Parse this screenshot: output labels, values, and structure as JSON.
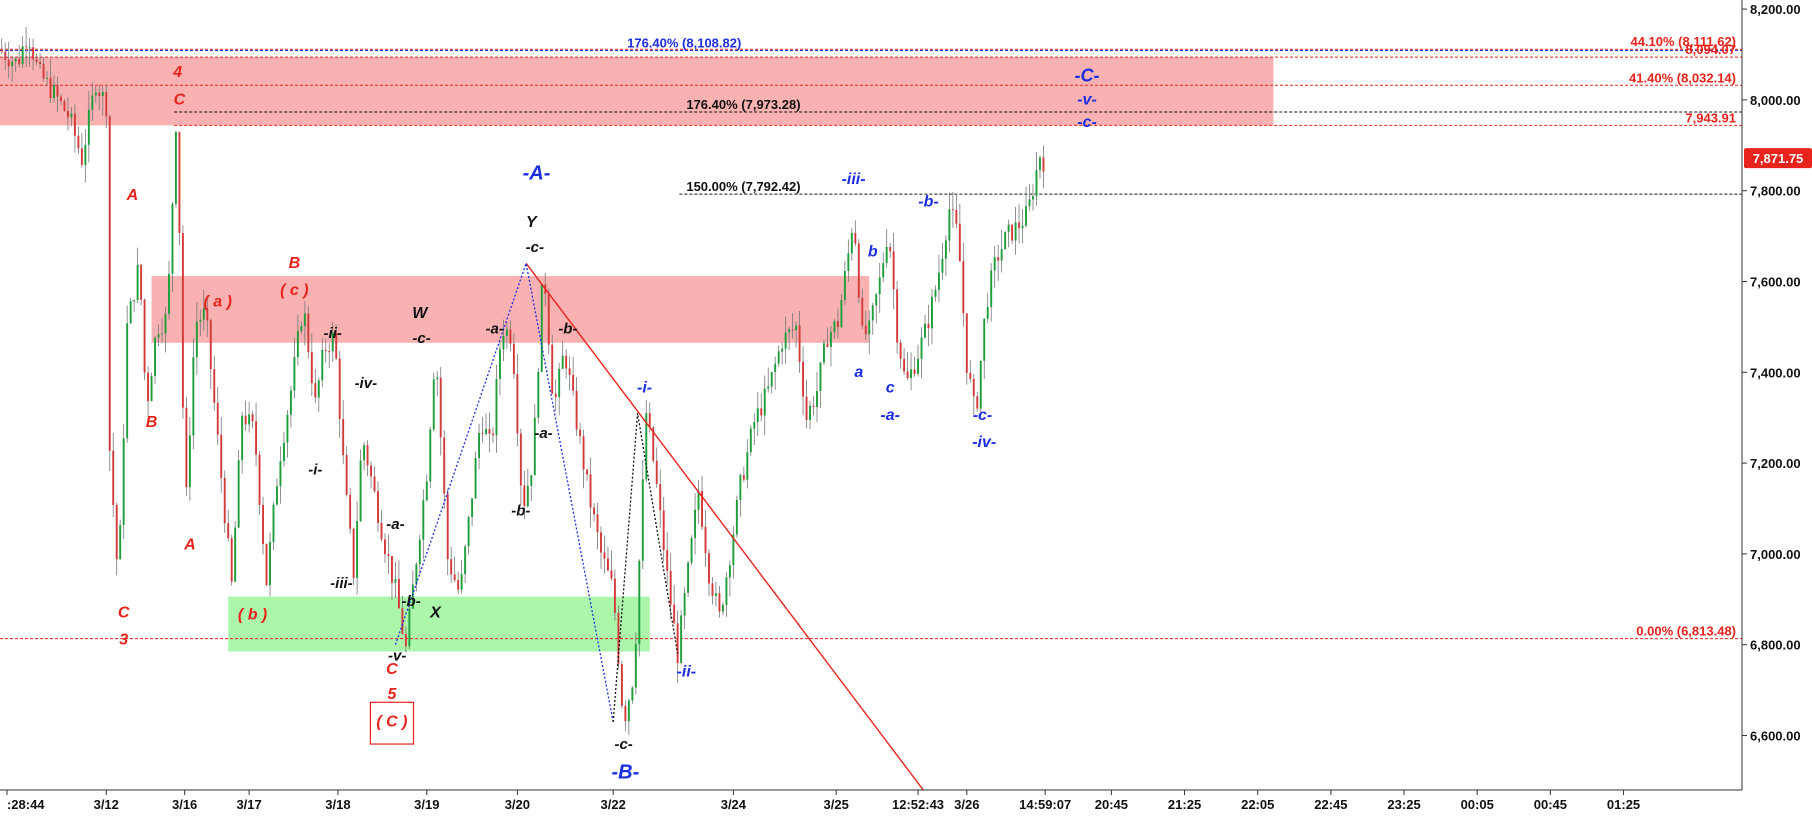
{
  "chart_data": {
    "type": "candlestick",
    "title": "",
    "xlabel": "",
    "ylabel": "",
    "ylim": [
      6480,
      8220
    ],
    "grid": false,
    "colors": {
      "up": "#1e9e3a",
      "down": "#d43a3a",
      "red": "#e8231c",
      "blue": "#1c2ee0",
      "black": "#111111",
      "zone_red": "#f8a3a3",
      "zone_green": "#9ef59e",
      "price_box": "#e8231c"
    },
    "y_ticks": [
      {
        "value": 8200,
        "label": "8,200.00"
      },
      {
        "value": 8000,
        "label": "8,000.00"
      },
      {
        "value": 7800,
        "label": "7,800.00"
      },
      {
        "value": 7600,
        "label": "7,600.00"
      },
      {
        "value": 7400,
        "label": "7,400.00"
      },
      {
        "value": 7200,
        "label": "7,200.00"
      },
      {
        "value": 7000,
        "label": "7,000.00"
      },
      {
        "value": 6800,
        "label": "6,800.00"
      },
      {
        "value": 6600,
        "label": "6,600.00"
      }
    ],
    "x_ticks": [
      ":28:44",
      "3/12",
      "3/16",
      "3/17",
      "3/18",
      "3/19",
      "3/20",
      "3/22",
      "3/24",
      "3/25",
      "12:52:43",
      "3/26",
      "14:59:07",
      "20:45",
      "21:25",
      "22:05",
      "22:45",
      "23:25",
      "00:05",
      "00:45",
      "01:25"
    ],
    "current_price": {
      "value": 7871.75,
      "label": "7,871.75"
    },
    "price_lines": [
      {
        "value": 8108.82,
        "label": "176.40% (8,108.82)",
        "color": "#1c2ee0",
        "start": 0.0,
        "label_pos": 0.36,
        "align": "left"
      },
      {
        "value": 8111.62,
        "label": "44.10% (8,111.62)",
        "color": "#e8231c",
        "start": 0.0,
        "label_pos": 1.0,
        "align": "right"
      },
      {
        "value": 8094.07,
        "label": "8,094.07",
        "color": "#e8231c",
        "start": 0.0,
        "label_pos": 1.0,
        "align": "right"
      },
      {
        "value": 8032.14,
        "label": "41.40% (8,032.14)",
        "color": "#e8231c",
        "start": 0.0,
        "label_pos": 1.0,
        "align": "right"
      },
      {
        "value": 7973.28,
        "label": "176.40% (7,973.28)",
        "color": "#111111",
        "start": 0.1,
        "label_pos": 0.394,
        "align": "left"
      },
      {
        "value": 7943.91,
        "label": "7,943.91",
        "color": "#e8231c",
        "start": 0.1,
        "label_pos": 1.0,
        "align": "right"
      },
      {
        "value": 7792.42,
        "label": "150.00% (7,792.42)",
        "color": "#111111",
        "start": 0.39,
        "label_pos": 0.394,
        "align": "left"
      },
      {
        "value": 6813.48,
        "label": "0.00% (6,813.48)",
        "color": "#e8231c",
        "start": 0.0,
        "label_pos": 1.0,
        "align": "right"
      }
    ],
    "zones": [
      {
        "kind": "red",
        "x0": 0.0,
        "x1": 0.731,
        "y0": 7943.91,
        "y1": 8094.07
      },
      {
        "kind": "red",
        "x0": 0.087,
        "x1": 0.499,
        "y0": 7465,
        "y1": 7612
      },
      {
        "kind": "green",
        "x0": 0.131,
        "x1": 0.373,
        "y0": 6785,
        "y1": 6906
      }
    ],
    "price_path": [
      [
        0.0,
        8110
      ],
      [
        0.01,
        8080
      ],
      [
        0.016,
        8150
      ],
      [
        0.022,
        8060
      ],
      [
        0.03,
        8020
      ],
      [
        0.04,
        7960
      ],
      [
        0.047,
        7870
      ],
      [
        0.055,
        8040
      ],
      [
        0.062,
        7980
      ],
      [
        0.063,
        7230
      ],
      [
        0.068,
        6930
      ],
      [
        0.073,
        7500
      ],
      [
        0.08,
        7640
      ],
      [
        0.084,
        7320
      ],
      [
        0.09,
        7500
      ],
      [
        0.096,
        7520
      ],
      [
        0.101,
        7950
      ],
      [
        0.104,
        7600
      ],
      [
        0.106,
        7050
      ],
      [
        0.112,
        7510
      ],
      [
        0.118,
        7530
      ],
      [
        0.125,
        7250
      ],
      [
        0.133,
        6930
      ],
      [
        0.139,
        7310
      ],
      [
        0.146,
        7270
      ],
      [
        0.153,
        6940
      ],
      [
        0.16,
        7200
      ],
      [
        0.167,
        7360
      ],
      [
        0.174,
        7550
      ],
      [
        0.181,
        7330
      ],
      [
        0.186,
        7450
      ],
      [
        0.192,
        7480
      ],
      [
        0.198,
        7150
      ],
      [
        0.203,
        6960
      ],
      [
        0.208,
        7260
      ],
      [
        0.215,
        7130
      ],
      [
        0.221,
        7020
      ],
      [
        0.227,
        6920
      ],
      [
        0.233,
        6790
      ],
      [
        0.239,
        6990
      ],
      [
        0.245,
        7180
      ],
      [
        0.25,
        7460
      ],
      [
        0.257,
        6990
      ],
      [
        0.264,
        6910
      ],
      [
        0.27,
        7100
      ],
      [
        0.276,
        7300
      ],
      [
        0.282,
        7230
      ],
      [
        0.288,
        7500
      ],
      [
        0.294,
        7480
      ],
      [
        0.3,
        7100
      ],
      [
        0.306,
        7210
      ],
      [
        0.312,
        7640
      ],
      [
        0.318,
        7320
      ],
      [
        0.324,
        7450
      ],
      [
        0.331,
        7290
      ],
      [
        0.338,
        7130
      ],
      [
        0.345,
        7000
      ],
      [
        0.352,
        6920
      ],
      [
        0.358,
        6630
      ],
      [
        0.364,
        6740
      ],
      [
        0.371,
        7310
      ],
      [
        0.376,
        7180
      ],
      [
        0.383,
        6950
      ],
      [
        0.389,
        6780
      ],
      [
        0.395,
        6960
      ],
      [
        0.401,
        7140
      ],
      [
        0.407,
        6960
      ],
      [
        0.413,
        6860
      ],
      [
        0.419,
        7000
      ],
      [
        0.425,
        7150
      ],
      [
        0.433,
        7290
      ],
      [
        0.441,
        7360
      ],
      [
        0.449,
        7470
      ],
      [
        0.457,
        7500
      ],
      [
        0.463,
        7300
      ],
      [
        0.469,
        7360
      ],
      [
        0.475,
        7480
      ],
      [
        0.481,
        7510
      ],
      [
        0.487,
        7660
      ],
      [
        0.49,
        7750
      ],
      [
        0.495,
        7480
      ],
      [
        0.499,
        7490
      ],
      [
        0.505,
        7600
      ],
      [
        0.51,
        7720
      ],
      [
        0.515,
        7490
      ],
      [
        0.52,
        7370
      ],
      [
        0.526,
        7430
      ],
      [
        0.532,
        7500
      ],
      [
        0.538,
        7600
      ],
      [
        0.545,
        7760
      ],
      [
        0.55,
        7700
      ],
      [
        0.555,
        7420
      ],
      [
        0.56,
        7300
      ],
      [
        0.566,
        7550
      ],
      [
        0.572,
        7650
      ],
      [
        0.578,
        7700
      ],
      [
        0.584,
        7720
      ],
      [
        0.59,
        7750
      ],
      [
        0.597,
        7880
      ],
      [
        0.6,
        7860
      ]
    ],
    "price_range": [
      0.0,
      0.6
    ],
    "trendline": {
      "x0": 0.302,
      "y0": 7640,
      "x1": 0.53,
      "y1": 6480,
      "color": "#e8231c"
    },
    "dotted_paths": [
      {
        "color": "#1c2ee0",
        "points": [
          [
            0.227,
            6800
          ],
          [
            0.302,
            7640
          ],
          [
            0.352,
            6630
          ]
        ]
      },
      {
        "color": "#111111",
        "points": [
          [
            0.352,
            6630
          ],
          [
            0.366,
            7310
          ],
          [
            0.389,
            6780
          ]
        ]
      }
    ],
    "annotations": [
      {
        "text": "4",
        "x": 0.102,
        "y": 8050,
        "color": "#e8231c",
        "size": 16
      },
      {
        "text": "C",
        "x": 0.103,
        "y": 7990,
        "color": "#e8231c",
        "size": 16
      },
      {
        "text": "A",
        "x": 0.076,
        "y": 7780,
        "color": "#e8231c",
        "size": 16
      },
      {
        "text": "B",
        "x": 0.087,
        "y": 7280,
        "color": "#e8231c",
        "size": 16
      },
      {
        "text": "A",
        "x": 0.109,
        "y": 7010,
        "color": "#e8231c",
        "size": 16
      },
      {
        "text": "C",
        "x": 0.071,
        "y": 6860,
        "color": "#e8231c",
        "size": 16
      },
      {
        "text": "3",
        "x": 0.071,
        "y": 6800,
        "color": "#e8231c",
        "size": 16
      },
      {
        "text": "( a )",
        "x": 0.125,
        "y": 7545,
        "color": "#e8231c",
        "size": 16
      },
      {
        "text": "B",
        "x": 0.169,
        "y": 7630,
        "color": "#e8231c",
        "size": 16
      },
      {
        "text": "( c )",
        "x": 0.169,
        "y": 7570,
        "color": "#e8231c",
        "size": 16
      },
      {
        "text": "( b )",
        "x": 0.145,
        "y": 6855,
        "color": "#e8231c",
        "size": 16
      },
      {
        "text": "C",
        "x": 0.225,
        "y": 6735,
        "color": "#e8231c",
        "size": 16
      },
      {
        "text": "5",
        "x": 0.225,
        "y": 6680,
        "color": "#e8231c",
        "size": 16
      },
      {
        "text": "( C )",
        "x": 0.225,
        "y": 6620,
        "color": "#e8231c",
        "size": 16,
        "boxed": true
      },
      {
        "text": "-ii-",
        "x": 0.191,
        "y": 7475,
        "color": "#111111",
        "size": 15
      },
      {
        "text": "-iv-",
        "x": 0.21,
        "y": 7365,
        "color": "#111111",
        "size": 15
      },
      {
        "text": "-i-",
        "x": 0.181,
        "y": 7175,
        "color": "#111111",
        "size": 15
      },
      {
        "text": "-iii-",
        "x": 0.196,
        "y": 6925,
        "color": "#111111",
        "size": 15
      },
      {
        "text": "W",
        "x": 0.241,
        "y": 7520,
        "color": "#111111",
        "size": 16
      },
      {
        "text": "-c-",
        "x": 0.242,
        "y": 7465,
        "color": "#111111",
        "size": 15
      },
      {
        "text": "-a-",
        "x": 0.227,
        "y": 7055,
        "color": "#111111",
        "size": 15
      },
      {
        "text": "-b-",
        "x": 0.236,
        "y": 6885,
        "color": "#111111",
        "size": 15
      },
      {
        "text": "X",
        "x": 0.25,
        "y": 6860,
        "color": "#111111",
        "size": 16
      },
      {
        "text": "-v-",
        "x": 0.228,
        "y": 6765,
        "color": "#111111",
        "size": 15
      },
      {
        "text": "Y",
        "x": 0.305,
        "y": 7720,
        "color": "#111111",
        "size": 16
      },
      {
        "text": "-c-",
        "x": 0.307,
        "y": 7665,
        "color": "#111111",
        "size": 15
      },
      {
        "text": "-a-",
        "x": 0.284,
        "y": 7485,
        "color": "#111111",
        "size": 15
      },
      {
        "text": "-b-",
        "x": 0.326,
        "y": 7485,
        "color": "#111111",
        "size": 15
      },
      {
        "text": "-a-",
        "x": 0.312,
        "y": 7255,
        "color": "#111111",
        "size": 15
      },
      {
        "text": "-b-",
        "x": 0.299,
        "y": 7085,
        "color": "#111111",
        "size": 15
      },
      {
        "text": "-c-",
        "x": 0.358,
        "y": 6570,
        "color": "#111111",
        "size": 15
      },
      {
        "text": "-A-",
        "x": 0.308,
        "y": 7825,
        "color": "#1c2ee0",
        "size": 20
      },
      {
        "text": "-B-",
        "x": 0.359,
        "y": 6505,
        "color": "#1c2ee0",
        "size": 20
      },
      {
        "text": "-i-",
        "x": 0.37,
        "y": 7355,
        "color": "#1c2ee0",
        "size": 16
      },
      {
        "text": "-ii-",
        "x": 0.394,
        "y": 6730,
        "color": "#1c2ee0",
        "size": 16
      },
      {
        "text": "-iii-",
        "x": 0.49,
        "y": 7815,
        "color": "#1c2ee0",
        "size": 16
      },
      {
        "text": "a",
        "x": 0.493,
        "y": 7390,
        "color": "#1c2ee0",
        "size": 16
      },
      {
        "text": "b",
        "x": 0.501,
        "y": 7655,
        "color": "#1c2ee0",
        "size": 16
      },
      {
        "text": "c",
        "x": 0.511,
        "y": 7355,
        "color": "#1c2ee0",
        "size": 16
      },
      {
        "text": "-a-",
        "x": 0.511,
        "y": 7295,
        "color": "#1c2ee0",
        "size": 16
      },
      {
        "text": "-b-",
        "x": 0.533,
        "y": 7765,
        "color": "#1c2ee0",
        "size": 16
      },
      {
        "text": "-c-",
        "x": 0.564,
        "y": 7295,
        "color": "#1c2ee0",
        "size": 16
      },
      {
        "text": "-iv-",
        "x": 0.565,
        "y": 7235,
        "color": "#1c2ee0",
        "size": 16
      },
      {
        "text": "-C-",
        "x": 0.624,
        "y": 8040,
        "color": "#1c2ee0",
        "size": 18
      },
      {
        "text": "-v-",
        "x": 0.624,
        "y": 7990,
        "color": "#1c2ee0",
        "size": 16
      },
      {
        "text": "-c-",
        "x": 0.624,
        "y": 7940,
        "color": "#1c2ee0",
        "size": 16
      }
    ]
  }
}
